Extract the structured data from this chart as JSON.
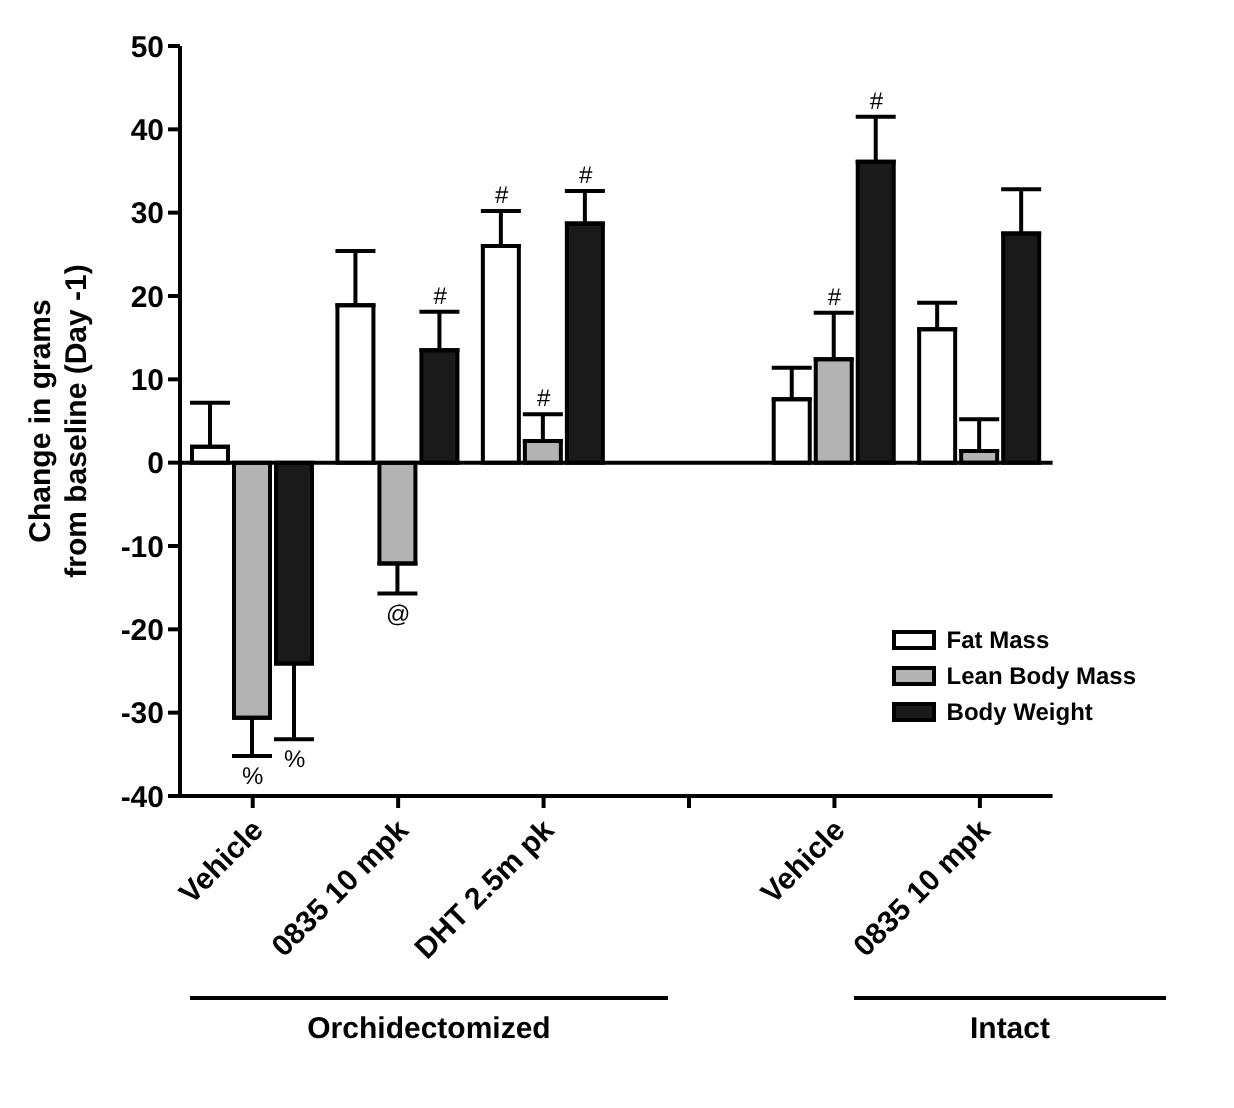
{
  "chart_data": {
    "type": "bar",
    "ylabel": "Change in grams\nfrom baseline (Day -1)",
    "categories": [
      "Vehicle",
      "0835 10 mpk",
      "DHT 2.5m pk",
      null,
      "Vehicle",
      "0835 10 mpk"
    ],
    "series": [
      {
        "name": "Fat Mass",
        "color": "#ffffff",
        "values": [
          1.9,
          18.9,
          26.0,
          null,
          7.6,
          16.0
        ],
        "errors": [
          [
            1.9,
            7.2
          ],
          [
            18.9,
            25.4
          ],
          [
            26.0,
            30.2
          ],
          null,
          [
            7.6,
            11.4
          ],
          [
            16.0,
            19.2
          ]
        ]
      },
      {
        "name": "Lean Body Mass",
        "color": "#b3b3b3",
        "values": [
          -30.6,
          -12.1,
          2.6,
          null,
          12.4,
          1.4
        ],
        "errors": [
          [
            -35.2,
            -30.6
          ],
          [
            -15.7,
            -12.1
          ],
          [
            2.6,
            5.8
          ],
          null,
          [
            12.4,
            18.0
          ],
          [
            1.4,
            5.2
          ]
        ]
      },
      {
        "name": "Body Weight",
        "color": "#1a1a1a",
        "values": [
          -24.1,
          13.5,
          28.7,
          null,
          36.1,
          27.5
        ],
        "errors": [
          [
            -33.2,
            -24.1
          ],
          [
            13.5,
            18.1
          ],
          [
            28.7,
            32.6
          ],
          null,
          [
            36.1,
            41.5
          ],
          [
            27.5,
            32.8
          ]
        ]
      }
    ],
    "ylim": [
      -40,
      50
    ],
    "yticks": [
      -40,
      -30,
      -20,
      -10,
      0,
      10,
      20,
      30,
      40,
      50
    ],
    "legend": "right",
    "annotations": [
      "%",
      "%",
      "@",
      "#",
      "#",
      "#",
      "#",
      "#",
      "#",
      "Orchidectomized",
      "Intact"
    ]
  }
}
